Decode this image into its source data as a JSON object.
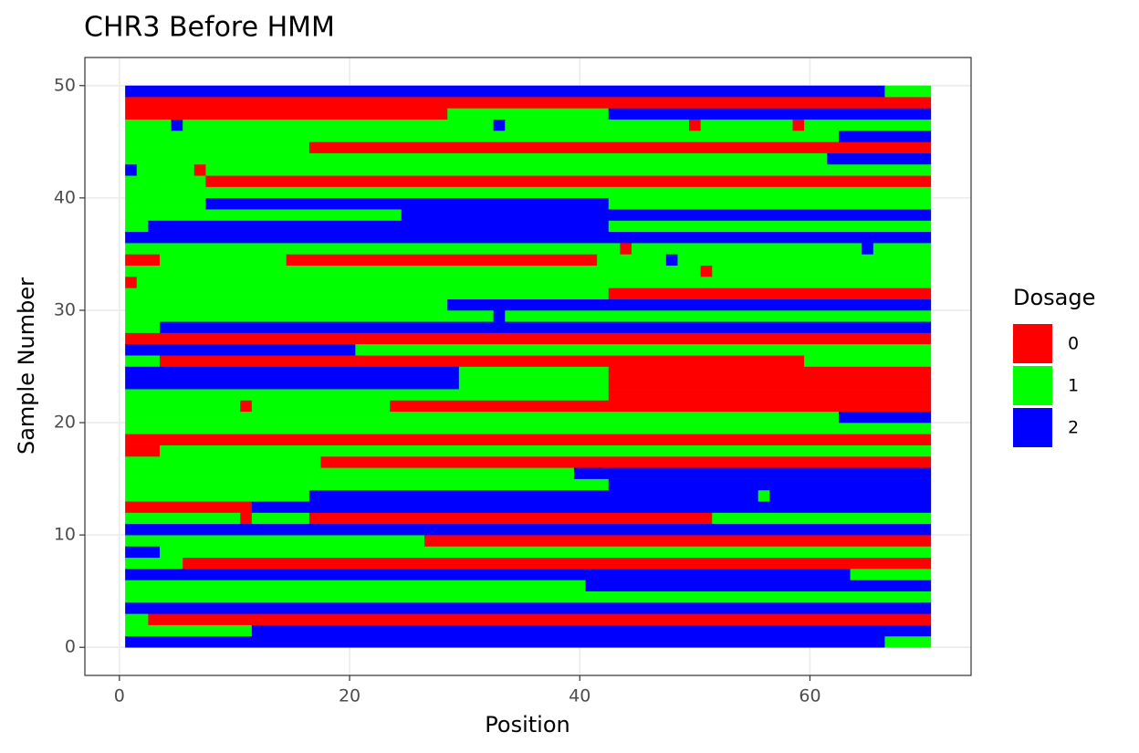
{
  "chart_data": {
    "type": "heatmap",
    "title": "CHR3 Before HMM",
    "x_label": "Position",
    "y_label": "Sample Number",
    "xlim": [
      -3,
      74
    ],
    "ylim": [
      -2.5,
      52.5
    ],
    "xticks": [
      0,
      20,
      40,
      60
    ],
    "yticks": [
      0,
      10,
      20,
      30,
      40,
      50
    ],
    "grid": true,
    "legend": {
      "title": "Dosage",
      "levels": [
        0,
        1,
        2
      ],
      "colors": [
        "#ff0000",
        "#00ff00",
        "#0000ff"
      ],
      "position": "right"
    },
    "rows": [
      [
        [
          1,
          66,
          2
        ],
        [
          67,
          70,
          1
        ]
      ],
      [
        [
          1,
          11,
          1
        ],
        [
          12,
          70,
          2
        ]
      ],
      [
        [
          1,
          2,
          1
        ],
        [
          3,
          70,
          0
        ]
      ],
      [
        [
          1,
          70,
          2
        ]
      ],
      [
        [
          1,
          70,
          1
        ]
      ],
      [
        [
          1,
          40,
          1
        ],
        [
          41,
          70,
          2
        ]
      ],
      [
        [
          1,
          63,
          2
        ],
        [
          64,
          70,
          1
        ]
      ],
      [
        [
          1,
          5,
          1
        ],
        [
          6,
          70,
          0
        ]
      ],
      [
        [
          1,
          3,
          2
        ],
        [
          4,
          70,
          1
        ]
      ],
      [
        [
          1,
          26,
          1
        ],
        [
          27,
          70,
          0
        ]
      ],
      [
        [
          1,
          70,
          2
        ]
      ],
      [
        [
          1,
          10,
          1
        ],
        [
          11,
          11,
          0
        ],
        [
          12,
          16,
          1
        ],
        [
          17,
          51,
          0
        ],
        [
          52,
          70,
          1
        ]
      ],
      [
        [
          1,
          11,
          0
        ],
        [
          12,
          70,
          2
        ]
      ],
      [
        [
          1,
          16,
          1
        ],
        [
          17,
          55,
          2
        ],
        [
          56,
          56,
          1
        ],
        [
          57,
          70,
          2
        ]
      ],
      [
        [
          1,
          42,
          1
        ],
        [
          43,
          70,
          2
        ]
      ],
      [
        [
          1,
          39,
          1
        ],
        [
          40,
          70,
          2
        ]
      ],
      [
        [
          1,
          17,
          1
        ],
        [
          18,
          70,
          0
        ]
      ],
      [
        [
          1,
          3,
          0
        ],
        [
          4,
          70,
          1
        ]
      ],
      [
        [
          1,
          70,
          0
        ]
      ],
      [
        [
          1,
          70,
          1
        ]
      ],
      [
        [
          1,
          62,
          1
        ],
        [
          63,
          70,
          2
        ]
      ],
      [
        [
          1,
          10,
          1
        ],
        [
          11,
          11,
          0
        ],
        [
          12,
          23,
          1
        ],
        [
          24,
          70,
          0
        ]
      ],
      [
        [
          1,
          42,
          1
        ],
        [
          43,
          70,
          0
        ]
      ],
      [
        [
          1,
          29,
          2
        ],
        [
          30,
          42,
          1
        ],
        [
          43,
          70,
          0
        ]
      ],
      [
        [
          1,
          29,
          2
        ],
        [
          30,
          42,
          1
        ],
        [
          43,
          70,
          0
        ]
      ],
      [
        [
          1,
          3,
          1
        ],
        [
          4,
          59,
          0
        ],
        [
          60,
          70,
          1
        ]
      ],
      [
        [
          1,
          20,
          2
        ],
        [
          21,
          70,
          1
        ]
      ],
      [
        [
          1,
          70,
          0
        ]
      ],
      [
        [
          1,
          3,
          1
        ],
        [
          4,
          70,
          2
        ]
      ],
      [
        [
          1,
          32,
          1
        ],
        [
          33,
          33,
          2
        ],
        [
          34,
          70,
          1
        ]
      ],
      [
        [
          1,
          28,
          1
        ],
        [
          29,
          70,
          2
        ]
      ],
      [
        [
          1,
          42,
          1
        ],
        [
          43,
          70,
          0
        ]
      ],
      [
        [
          1,
          1,
          0
        ],
        [
          2,
          70,
          1
        ]
      ],
      [
        [
          1,
          50,
          1
        ],
        [
          51,
          51,
          0
        ],
        [
          52,
          70,
          1
        ]
      ],
      [
        [
          1,
          3,
          0
        ],
        [
          4,
          14,
          1
        ],
        [
          15,
          41,
          0
        ],
        [
          42,
          47,
          1
        ],
        [
          48,
          48,
          2
        ],
        [
          49,
          70,
          1
        ]
      ],
      [
        [
          1,
          43,
          1
        ],
        [
          44,
          44,
          0
        ],
        [
          45,
          64,
          1
        ],
        [
          65,
          65,
          2
        ],
        [
          66,
          70,
          1
        ]
      ],
      [
        [
          1,
          70,
          2
        ]
      ],
      [
        [
          1,
          2,
          1
        ],
        [
          3,
          42,
          2
        ],
        [
          43,
          70,
          1
        ]
      ],
      [
        [
          1,
          24,
          1
        ],
        [
          25,
          70,
          2
        ]
      ],
      [
        [
          1,
          7,
          1
        ],
        [
          8,
          42,
          2
        ],
        [
          43,
          70,
          1
        ]
      ],
      [
        [
          1,
          70,
          1
        ]
      ],
      [
        [
          1,
          7,
          1
        ],
        [
          8,
          70,
          0
        ]
      ],
      [
        [
          1,
          1,
          2
        ],
        [
          2,
          6,
          1
        ],
        [
          7,
          7,
          0
        ],
        [
          8,
          70,
          1
        ]
      ],
      [
        [
          1,
          61,
          1
        ],
        [
          62,
          70,
          2
        ]
      ],
      [
        [
          1,
          16,
          1
        ],
        [
          17,
          70,
          0
        ]
      ],
      [
        [
          1,
          62,
          1
        ],
        [
          63,
          70,
          2
        ]
      ],
      [
        [
          1,
          4,
          1
        ],
        [
          5,
          5,
          2
        ],
        [
          6,
          32,
          1
        ],
        [
          33,
          33,
          2
        ],
        [
          34,
          49,
          1
        ],
        [
          50,
          50,
          0
        ],
        [
          51,
          58,
          1
        ],
        [
          59,
          59,
          0
        ],
        [
          60,
          70,
          1
        ]
      ],
      [
        [
          1,
          28,
          0
        ],
        [
          29,
          42,
          1
        ],
        [
          43,
          70,
          2
        ]
      ],
      [
        [
          1,
          70,
          0
        ]
      ],
      [
        [
          1,
          66,
          2
        ],
        [
          67,
          70,
          1
        ]
      ]
    ]
  }
}
